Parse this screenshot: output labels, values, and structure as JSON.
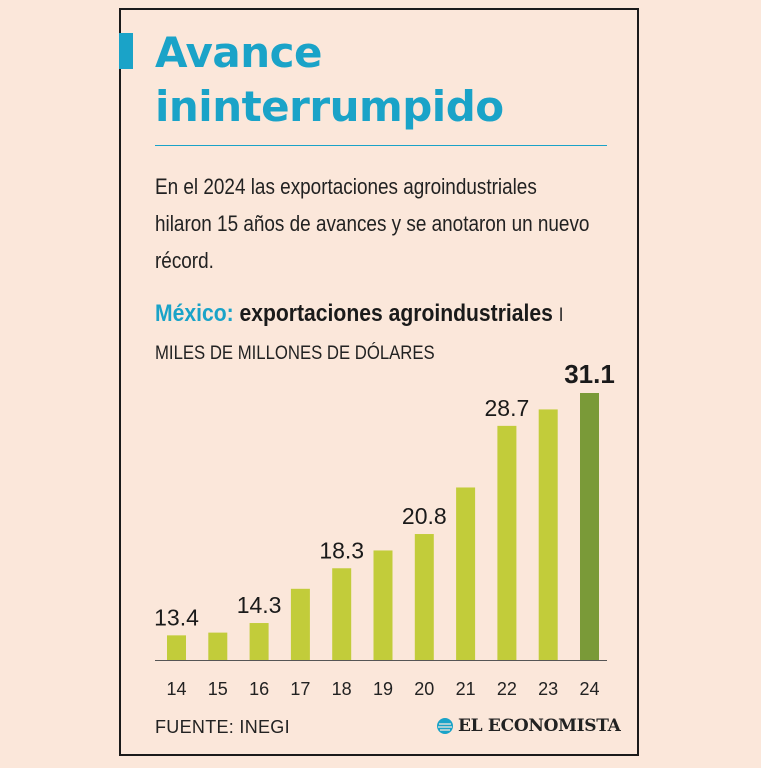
{
  "title": "Avance ininterrumpido",
  "subtitle": "En el 2024 las exportaciones agroindustriales hilaron 15 años de avances y se anotaron un nuevo récord.",
  "chart_title": {
    "country": "México:",
    "series": "exportaciones agroindustriales",
    "separator": "I",
    "units": "MILES DE MILLONES DE DÓLARES"
  },
  "source": "FUENTE: INEGI",
  "brand": "EL ECONOMISTA",
  "colors": {
    "accent": "#1aa3c8",
    "bar": "#c2cc3a",
    "bar_highlight": "#7a9a38",
    "background": "#fbe7da"
  },
  "chart_data": {
    "type": "bar",
    "categories": [
      "14",
      "15",
      "16",
      "17",
      "18",
      "19",
      "20",
      "21",
      "22",
      "23",
      "24"
    ],
    "values": [
      13.4,
      13.6,
      14.3,
      16.8,
      18.3,
      19.6,
      20.8,
      24.2,
      28.7,
      29.9,
      31.1
    ],
    "labeled": [
      true,
      false,
      true,
      false,
      true,
      false,
      true,
      false,
      true,
      false,
      true
    ],
    "highlight_index": 10,
    "ylim": [
      11.6,
      31.1
    ],
    "grid": false
  }
}
